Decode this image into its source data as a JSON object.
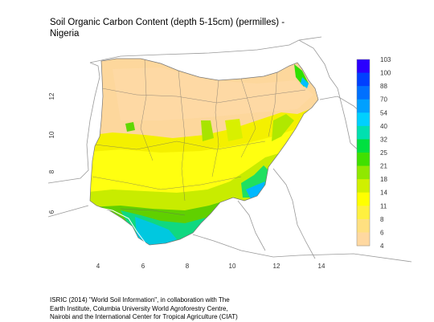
{
  "title_line1": "Soil Organic Carbon Content (depth 5-15cm) (permilles) -",
  "title_line2": "Nigeria",
  "x_ticks": [
    "4",
    "6",
    "8",
    "10",
    "12",
    "14"
  ],
  "y_ticks": [
    "6",
    "8",
    "10",
    "12"
  ],
  "legend": {
    "labels": [
      "103",
      "100",
      "88",
      "70",
      "54",
      "40",
      "32",
      "25",
      "21",
      "18",
      "14",
      "11",
      "8",
      "6",
      "4"
    ],
    "colors": [
      "#2a00ff",
      "#0040ff",
      "#0070ff",
      "#00a0ff",
      "#00d0ff",
      "#00e0b0",
      "#00e040",
      "#40e000",
      "#90e800",
      "#d0f000",
      "#ffff00",
      "#fff040",
      "#ffe080",
      "#ffd8a0",
      "#ffd0a0"
    ]
  },
  "credit": {
    "line1": "ISRIC (2014) \"World Soil Information\", in collaboration with The",
    "line2": "Earth Institute, Columbia University World Agroforestry Centre,",
    "line3": "Nairobi and the International Center for Tropical Agriculture (CIAT)"
  }
}
